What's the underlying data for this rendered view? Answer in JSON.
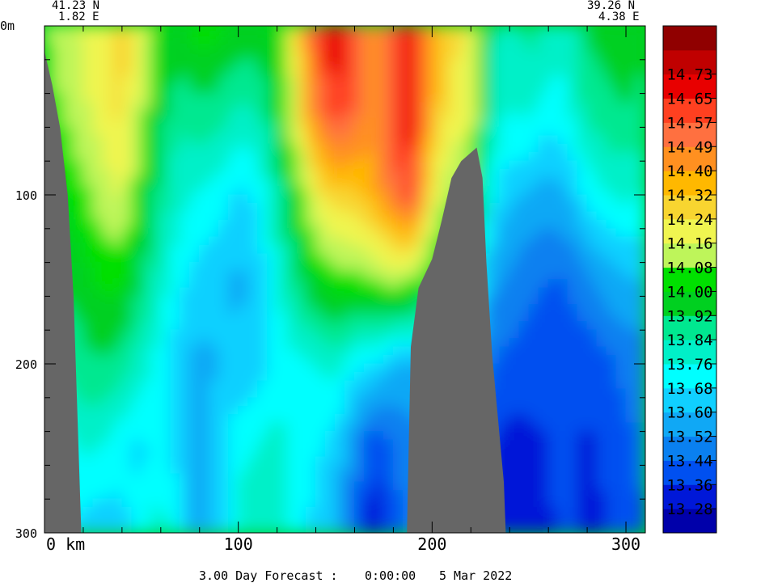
{
  "header": {
    "left_lat": "41.23 N",
    "left_lon": "1.82 E",
    "right_lat": "39.26 N",
    "right_lon": "4.38 E"
  },
  "footer": {
    "forecast_label": "3.00 Day Forecast :",
    "time": "0:00:00",
    "date": "5 Mar 2022"
  },
  "chart_data": {
    "type": "heatmap",
    "title": "",
    "xlabel": "",
    "ylabel": "",
    "x_unit_label": "km",
    "y_unit_label": "m",
    "xlim": [
      0,
      310
    ],
    "ylim": [
      0,
      300
    ],
    "y_inverted": true,
    "x_ticks": [
      0,
      100,
      200,
      300
    ],
    "y_ticks": [
      0,
      100,
      200,
      300
    ],
    "colorbar": {
      "placement": "right",
      "levels": [
        13.28,
        13.36,
        13.44,
        13.52,
        13.6,
        13.68,
        13.76,
        13.84,
        13.92,
        14.0,
        14.08,
        14.16,
        14.24,
        14.32,
        14.4,
        14.49,
        14.57,
        14.65,
        14.73
      ],
      "level_labels": [
        "13.28",
        "13.36",
        "13.44",
        "13.52",
        "13.60",
        "13.68",
        "13.76",
        "13.84",
        "13.92",
        "14.00",
        "14.08",
        "14.16",
        "14.24",
        "14.32",
        "14.40",
        "14.49",
        "14.57",
        "14.65",
        "14.73"
      ],
      "colors": [
        "#0000aa",
        "#0018d8",
        "#0050f0",
        "#0a80f0",
        "#10a8f5",
        "#10d0ff",
        "#00ffff",
        "#00f0c8",
        "#00e890",
        "#00d020",
        "#00e000",
        "#bef55a",
        "#f0f550",
        "#f8d530",
        "#ffb800",
        "#ff9020",
        "#ff7040",
        "#ff4020",
        "#e80000",
        "#c00000",
        "#900000"
      ]
    },
    "bathymetry_color": "#666666",
    "bathymetry_depth_profile": [
      {
        "x": 0,
        "depth": 15
      },
      {
        "x": 4,
        "depth": 35
      },
      {
        "x": 8,
        "depth": 60
      },
      {
        "x": 12,
        "depth": 100
      },
      {
        "x": 15,
        "depth": 160
      },
      {
        "x": 17,
        "depth": 230
      },
      {
        "x": 19,
        "depth": 300
      },
      {
        "x": 187,
        "depth": 300
      },
      {
        "x": 189,
        "depth": 190
      },
      {
        "x": 193,
        "depth": 155
      },
      {
        "x": 200,
        "depth": 138
      },
      {
        "x": 205,
        "depth": 115
      },
      {
        "x": 210,
        "depth": 90
      },
      {
        "x": 215,
        "depth": 80
      },
      {
        "x": 220,
        "depth": 75
      },
      {
        "x": 223,
        "depth": 72
      },
      {
        "x": 226,
        "depth": 90
      },
      {
        "x": 228,
        "depth": 140
      },
      {
        "x": 231,
        "depth": 195
      },
      {
        "x": 235,
        "depth": 245
      },
      {
        "x": 237,
        "depth": 270
      },
      {
        "x": 238,
        "depth": 300
      }
    ],
    "field_samples_depth": [
      0,
      50,
      100,
      150,
      200,
      250,
      300
    ],
    "field_samples_x": [
      0,
      10,
      20,
      30,
      40,
      50,
      60,
      70,
      80,
      90,
      100,
      110,
      120,
      130,
      140,
      150,
      160,
      170,
      180,
      190,
      200,
      210,
      220,
      230,
      240,
      250,
      260,
      270,
      280,
      290,
      300,
      310
    ],
    "field_values": [
      [
        14.08,
        14.12,
        14.18,
        14.22,
        14.28,
        14.22,
        14.02,
        13.98,
        14.05,
        14.02,
        14.0,
        13.98,
        14.02,
        14.25,
        14.6,
        14.74,
        14.62,
        14.4,
        14.55,
        14.7,
        14.4,
        14.26,
        14.24,
        13.86,
        13.8,
        13.88,
        13.82,
        13.8,
        13.94,
        13.96,
        13.96,
        13.94
      ],
      [
        14.04,
        14.08,
        14.14,
        14.2,
        14.26,
        14.12,
        13.95,
        13.86,
        13.9,
        13.88,
        13.82,
        13.84,
        13.96,
        14.2,
        14.5,
        14.62,
        14.55,
        14.42,
        14.6,
        14.72,
        14.35,
        14.22,
        14.2,
        13.84,
        13.76,
        13.78,
        13.72,
        13.74,
        13.86,
        13.9,
        13.92,
        13.9
      ],
      [
        14.0,
        14.0,
        14.06,
        14.12,
        14.18,
        14.02,
        13.88,
        13.78,
        13.76,
        13.72,
        13.66,
        13.7,
        13.86,
        14.02,
        14.2,
        14.3,
        14.3,
        14.36,
        14.52,
        14.62,
        14.2,
        14.1,
        14.06,
        13.72,
        13.62,
        13.6,
        13.56,
        13.6,
        13.7,
        13.76,
        13.78,
        13.76
      ],
      [
        13.96,
        13.94,
        13.96,
        14.02,
        14.02,
        13.92,
        13.8,
        13.7,
        13.64,
        13.62,
        13.58,
        13.62,
        13.76,
        13.9,
        14.0,
        14.04,
        14.06,
        14.08,
        14.12,
        14.1,
        14.0,
        13.9,
        13.86,
        13.56,
        13.5,
        13.46,
        13.44,
        13.44,
        13.5,
        13.56,
        13.6,
        13.6
      ],
      [
        13.9,
        13.86,
        13.9,
        13.92,
        13.88,
        13.8,
        13.72,
        13.62,
        13.58,
        13.6,
        13.62,
        13.64,
        13.7,
        13.74,
        13.76,
        13.8,
        13.7,
        13.68,
        13.6,
        13.6,
        13.6,
        13.58,
        13.56,
        13.44,
        13.42,
        13.4,
        13.38,
        13.4,
        13.38,
        13.42,
        13.46,
        13.48
      ],
      [
        13.84,
        13.72,
        13.78,
        13.76,
        13.7,
        13.66,
        13.72,
        13.64,
        13.56,
        13.64,
        13.74,
        13.76,
        13.8,
        13.72,
        13.7,
        13.64,
        13.5,
        13.36,
        13.44,
        13.48,
        13.48,
        13.46,
        13.44,
        13.36,
        13.32,
        13.34,
        13.36,
        13.4,
        13.34,
        13.38,
        13.42,
        13.46
      ],
      [
        13.82,
        13.7,
        13.64,
        13.62,
        13.66,
        13.72,
        13.8,
        13.7,
        13.56,
        13.62,
        13.78,
        13.82,
        13.84,
        13.7,
        13.66,
        13.62,
        13.44,
        13.3,
        13.42,
        13.46,
        13.46,
        13.44,
        13.42,
        13.34,
        13.3,
        13.3,
        13.34,
        13.4,
        13.32,
        13.36,
        13.4,
        13.44
      ]
    ]
  }
}
